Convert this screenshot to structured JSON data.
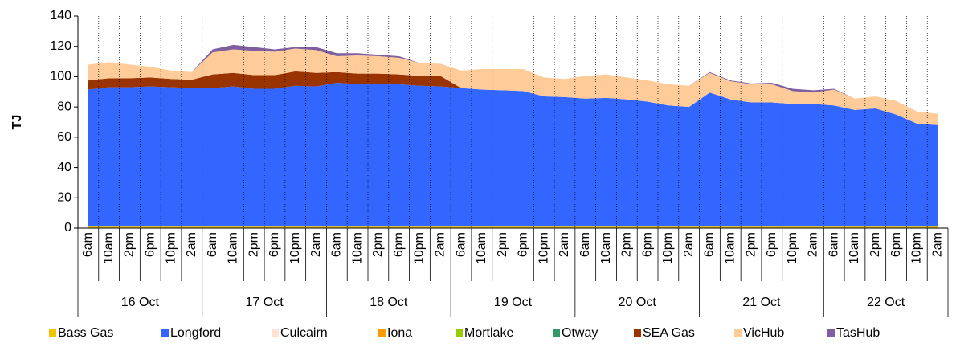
{
  "chart_data": {
    "type": "stacked-area",
    "y_label": "TJ",
    "categories": [
      "6am",
      "10am",
      "2pm",
      "6pm",
      "10pm",
      "2am",
      "6am",
      "10am",
      "2pm",
      "6pm",
      "10pm",
      "2am",
      "6am",
      "10am",
      "2pm",
      "6pm",
      "10pm",
      "2am",
      "6am",
      "10am",
      "2pm",
      "6pm",
      "10pm",
      "2am",
      "6am",
      "10am",
      "2pm",
      "6pm",
      "10pm",
      "2am",
      "6am",
      "10am",
      "2pm",
      "6pm",
      "10pm",
      "2am",
      "6am",
      "10am",
      "2pm",
      "6pm",
      "10pm",
      "2am"
    ],
    "groups": [
      "16 Oct",
      "17 Oct",
      "18 Oct",
      "19 Oct",
      "20 Oct",
      "21 Oct",
      "22 Oct"
    ],
    "ylim": [
      0,
      140
    ],
    "yticks": [
      0,
      20,
      40,
      60,
      80,
      100,
      120,
      140
    ],
    "series": [
      {
        "name": "Bass Gas",
        "color": "#f5c400",
        "values": [
          1.5,
          1.5,
          1.5,
          1.5,
          1.5,
          1.5,
          1.5,
          1.5,
          1.5,
          1.5,
          1.5,
          1.5,
          1.5,
          1.5,
          1.5,
          1.5,
          1.5,
          1.5,
          1.5,
          1.5,
          1.5,
          1.5,
          1.5,
          1.5,
          1.5,
          1.5,
          1.5,
          1.5,
          1.5,
          1.5,
          1.5,
          1.5,
          1.5,
          1.5,
          1.5,
          1.5,
          1.5,
          1.5,
          1.5,
          1.5,
          1.5,
          1.5
        ]
      },
      {
        "name": "Longford",
        "color": "#3366ff",
        "values": [
          90,
          91.5,
          91.5,
          92,
          91.5,
          91,
          91,
          92,
          90.5,
          90.5,
          92.5,
          92,
          94.5,
          93.5,
          93.5,
          93.5,
          92.5,
          92,
          91,
          90,
          89.5,
          89,
          85.5,
          85,
          84,
          84.5,
          83.5,
          82,
          79.5,
          78.5,
          88,
          83.5,
          81.5,
          81.5,
          80.5,
          80.5,
          79.5,
          76.5,
          77.5,
          73.5,
          67.5,
          66.5
        ]
      },
      {
        "name": "Culcairn",
        "color": "#fbe3d4",
        "values": [
          0,
          0,
          0,
          0,
          0,
          0,
          0,
          0,
          0,
          0,
          0,
          0,
          0,
          0,
          0,
          0,
          0,
          0,
          0,
          0,
          0,
          0,
          0,
          0,
          0,
          0,
          0,
          0,
          0,
          0,
          0,
          0,
          0,
          0,
          0,
          0,
          0,
          0,
          0,
          0,
          0,
          0
        ]
      },
      {
        "name": "Iona",
        "color": "#ff9900",
        "values": [
          0,
          0,
          0,
          0,
          0,
          0,
          0,
          0,
          0,
          0,
          0,
          0,
          0,
          0,
          0,
          0,
          0,
          0,
          0,
          0,
          0,
          0,
          0,
          0,
          0,
          0,
          0,
          0,
          0,
          0,
          0,
          0,
          0,
          0,
          0,
          0,
          0,
          0,
          0,
          0,
          0,
          0
        ]
      },
      {
        "name": "Mortlake",
        "color": "#99cc00",
        "values": [
          0,
          0,
          0,
          0,
          0,
          0,
          0,
          0,
          0,
          0,
          0,
          0,
          0,
          0,
          0,
          0,
          0,
          0,
          0,
          0,
          0,
          0,
          0,
          0,
          0,
          0,
          0,
          0,
          0,
          0,
          0,
          0,
          0,
          0,
          0,
          0,
          0,
          0,
          0,
          0,
          0,
          0
        ]
      },
      {
        "name": "Otway",
        "color": "#339966",
        "values": [
          0,
          0,
          0,
          0,
          0,
          0,
          0,
          0,
          0,
          0,
          0,
          0,
          0,
          0,
          0,
          0,
          0,
          0,
          0,
          0,
          0,
          0,
          0,
          0,
          0,
          0,
          0,
          0,
          0,
          0,
          0,
          0,
          0,
          0,
          0,
          0,
          0,
          0,
          0,
          0,
          0,
          0
        ]
      },
      {
        "name": "SEA Gas",
        "color": "#993300",
        "values": [
          6,
          6,
          6,
          6,
          5.5,
          5.5,
          9,
          9,
          9,
          9,
          9.5,
          9,
          7,
          7,
          7,
          6.5,
          6.5,
          7,
          0,
          0,
          0,
          0,
          0,
          0,
          0,
          0,
          0,
          0,
          0,
          0,
          0,
          0,
          0,
          0,
          0,
          0,
          0,
          0,
          0,
          0,
          0,
          0
        ]
      },
      {
        "name": "VicHub",
        "color": "#ffcc99",
        "values": [
          10.5,
          10.5,
          9,
          7,
          5.5,
          5,
          14.5,
          15.5,
          16,
          15.5,
          15,
          15,
          10.5,
          12,
          11.5,
          11,
          8.5,
          8,
          11.5,
          13.5,
          14,
          14.5,
          12.5,
          12,
          15,
          15.5,
          14.5,
          14,
          14,
          14,
          13,
          12,
          12,
          12,
          8.5,
          7.5,
          10.5,
          7.5,
          8,
          9,
          8,
          7.5
        ]
      },
      {
        "name": "TasHub",
        "color": "#7f5f9f",
        "values": [
          0,
          0,
          0,
          0,
          0,
          0,
          2,
          3,
          2.5,
          1.5,
          1,
          2,
          2,
          1.5,
          1,
          1,
          0,
          0,
          0,
          0,
          0,
          0,
          0,
          0,
          0,
          0,
          0,
          0,
          0,
          0,
          0.5,
          0.5,
          0.5,
          1,
          1.5,
          1.5,
          0.5,
          0,
          0,
          0,
          0,
          0
        ]
      }
    ]
  }
}
